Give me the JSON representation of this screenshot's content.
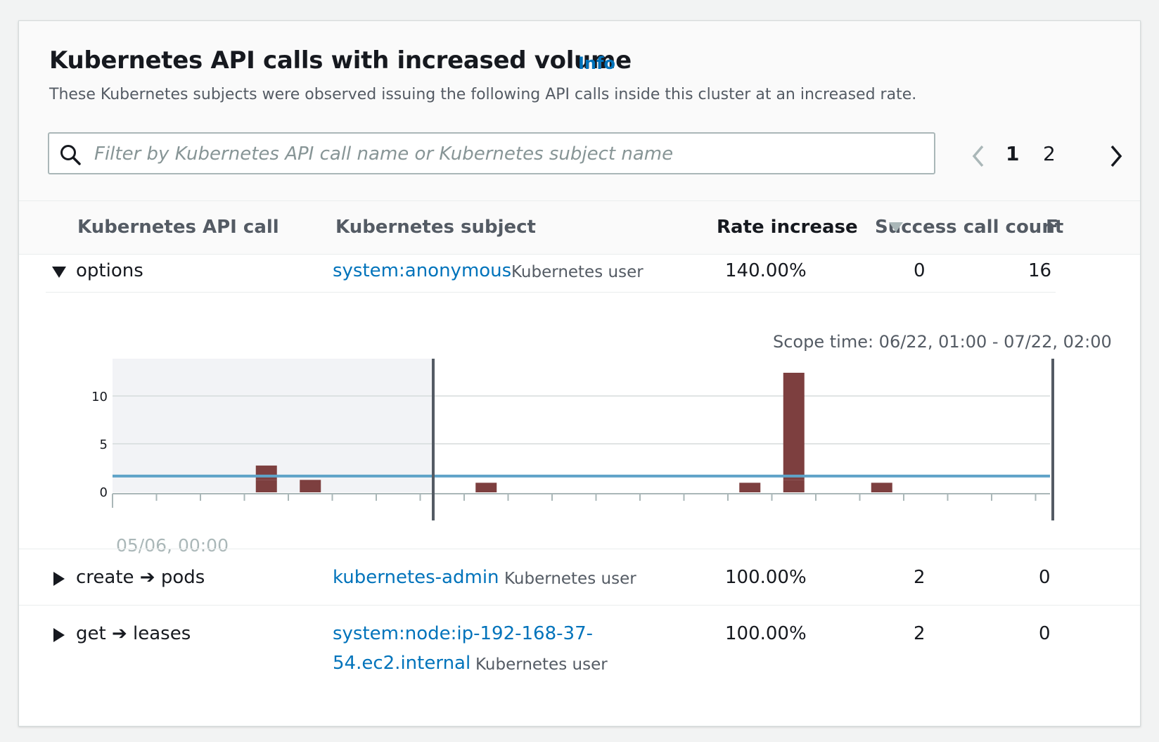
{
  "panel": {
    "title": "Kubernetes API calls with increased volume",
    "info_label": "Info",
    "description": "These Kubernetes subjects were observed issuing the following API calls inside this cluster at an increased rate."
  },
  "search": {
    "placeholder": "Filter by Kubernetes API call name or Kubernetes subject name",
    "value": ""
  },
  "pagination": {
    "pages": [
      "1",
      "2"
    ],
    "current": "1",
    "prev_icon": "chevron-left-icon",
    "next_icon": "chevron-right-icon"
  },
  "table": {
    "columns": [
      "Kubernetes API call",
      "Kubernetes subject",
      "Rate increase",
      "Success call count",
      "F"
    ],
    "sort_icon": "sort-descending-icon",
    "rows": [
      {
        "api_call": "options",
        "subject": "system:anonymous",
        "subject_type": "Kubernetes user",
        "rate_increase": "140.00%",
        "success_count": "0",
        "failure_count": "16",
        "expanded": true
      },
      {
        "api_call": "create ➔ pods",
        "subject": "kubernetes-admin",
        "subject_type": "Kubernetes user",
        "rate_increase": "100.00%",
        "success_count": "2",
        "failure_count": "0",
        "expanded": false
      },
      {
        "api_call": "get ➔ leases",
        "subject_line1": "system:node:ip-192-168-37-",
        "subject_line2": "54.ec2.internal",
        "subject_type": "Kubernetes user",
        "rate_increase": "100.00%",
        "success_count": "2",
        "failure_count": "0",
        "expanded": false
      }
    ]
  },
  "details": {
    "scope_time": "Scope time: 06/22, 01:00 - 07/22, 02:00"
  },
  "chart_data": {
    "type": "bar",
    "x_start_label": "05/06, 00:00",
    "y_ticks": [
      0,
      5,
      10
    ],
    "ylim": [
      0,
      14
    ],
    "baseline_value": 1.7,
    "bar_color": "#7d3f3f",
    "baseline_color": "#5fa3c8",
    "bars": [
      {
        "bin": 3.5,
        "segments": [
          1.3,
          1.5
        ]
      },
      {
        "bin": 4.5,
        "segments": [
          1.3,
          0
        ]
      },
      {
        "bin": 8.5,
        "segments": [
          1.0,
          0
        ]
      },
      {
        "bin": 14.5,
        "segments": [
          1.0,
          0
        ]
      },
      {
        "bin": 15.5,
        "segments": [
          1.3,
          11.2
        ]
      },
      {
        "bin": 17.5,
        "segments": [
          1.0,
          0
        ]
      }
    ]
  }
}
